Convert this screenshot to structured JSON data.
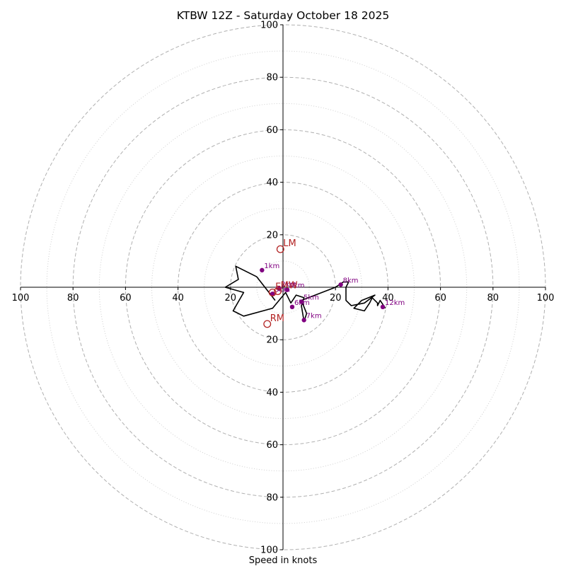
{
  "chart_data": {
    "type": "hodograph",
    "title": "KTBW 12Z - Saturday October 18 2025",
    "xlabel": "Speed in knots",
    "xlim": [
      -100,
      100
    ],
    "ylim": [
      -100,
      100
    ],
    "ring_major": [
      20,
      40,
      60,
      80,
      100
    ],
    "ring_minor": [
      10,
      30,
      50,
      70,
      90
    ],
    "tick_values": [
      -100,
      -80,
      -60,
      -40,
      -20,
      20,
      40,
      60,
      80,
      100
    ],
    "tick_labels": [
      "100",
      "80",
      "60",
      "40",
      "20",
      "20",
      "40",
      "60",
      "80",
      "100"
    ],
    "trace": [
      [
        -3,
        -5
      ],
      [
        -10,
        4
      ],
      [
        -18,
        8
      ],
      [
        -17,
        3
      ],
      [
        -22,
        0
      ],
      [
        -15,
        -2
      ],
      [
        -19,
        -9
      ],
      [
        -15,
        -11
      ],
      [
        -4,
        -8
      ],
      [
        1,
        -2
      ],
      [
        3,
        -6
      ],
      [
        5,
        -3
      ],
      [
        8,
        -4
      ],
      [
        7,
        -7
      ],
      [
        8,
        -13
      ],
      [
        9,
        -10
      ],
      [
        7,
        -5
      ],
      [
        20,
        0
      ],
      [
        23,
        2
      ],
      [
        25,
        2
      ],
      [
        24,
        0
      ],
      [
        24,
        -5
      ],
      [
        26,
        -7
      ],
      [
        31,
        -6
      ],
      [
        35,
        -3
      ],
      [
        30,
        -5
      ],
      [
        27,
        -8
      ],
      [
        31,
        -9
      ],
      [
        33,
        -6
      ],
      [
        34,
        -4
      ],
      [
        36,
        -6
      ],
      [
        36,
        -7
      ],
      [
        37,
        -5
      ],
      [
        39,
        -8
      ]
    ],
    "height_markers": [
      {
        "label": "1km",
        "x": -8,
        "y": 6.5
      },
      {
        "label": "2km",
        "x": -1.5,
        "y": -0.5
      },
      {
        "label": "3km",
        "x": -4,
        "y": -2.5
      },
      {
        "label": "4km",
        "x": 1.5,
        "y": -1
      },
      {
        "label": "5km",
        "x": 7,
        "y": -5.5
      },
      {
        "label": "6km",
        "x": 3.5,
        "y": -7.5
      },
      {
        "label": "7km",
        "x": 8,
        "y": -12.5
      },
      {
        "label": "8km",
        "x": 22,
        "y": 1
      },
      {
        "label": "12km",
        "x": 38,
        "y": -7.5
      }
    ],
    "storm_motion": [
      {
        "label": "LM",
        "x": -1,
        "y": 14.5
      },
      {
        "label": "RM",
        "x": -6,
        "y": -14
      },
      {
        "label": "MW",
        "x": -2,
        "y": -1.5
      },
      {
        "label": "E",
        "x": -4,
        "y": -2
      }
    ],
    "colors": {
      "trace": "#000000",
      "marker": "#800080",
      "storm_motion": "#b22222",
      "grid": "#b0b0b0"
    }
  }
}
